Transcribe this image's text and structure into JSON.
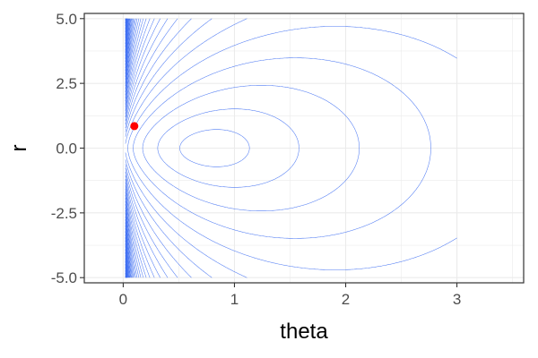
{
  "chart_data": {
    "type": "contour",
    "xlabel": "theta",
    "ylabel": "r",
    "xlim": [
      -0.35,
      3.6
    ],
    "ylim": [
      -5.2,
      5.2
    ],
    "x_ticks": [
      {
        "value": 0,
        "label": "0"
      },
      {
        "value": 1,
        "label": "1"
      },
      {
        "value": 2,
        "label": "2"
      },
      {
        "value": 3,
        "label": "3"
      }
    ],
    "y_ticks": [
      {
        "value": 5,
        "label": "5.0"
      },
      {
        "value": 2.5,
        "label": "2.5"
      },
      {
        "value": 0,
        "label": "0.0"
      },
      {
        "value": -2.5,
        "label": "-2.5"
      },
      {
        "value": -5,
        "label": "-5.0"
      }
    ],
    "contour_domain": {
      "theta": [
        0.02,
        3.0
      ],
      "r": [
        -5.0,
        5.0
      ]
    },
    "contour_minimum": {
      "theta": 0.78,
      "r": 0.0
    },
    "point": {
      "theta": 0.1,
      "r": 0.85
    },
    "grid": true,
    "legend": "none",
    "colors": {
      "contour": "#3b6cf2",
      "point": "#ff0000",
      "grid": "#ebebeb",
      "panel_border": "#333333"
    }
  }
}
